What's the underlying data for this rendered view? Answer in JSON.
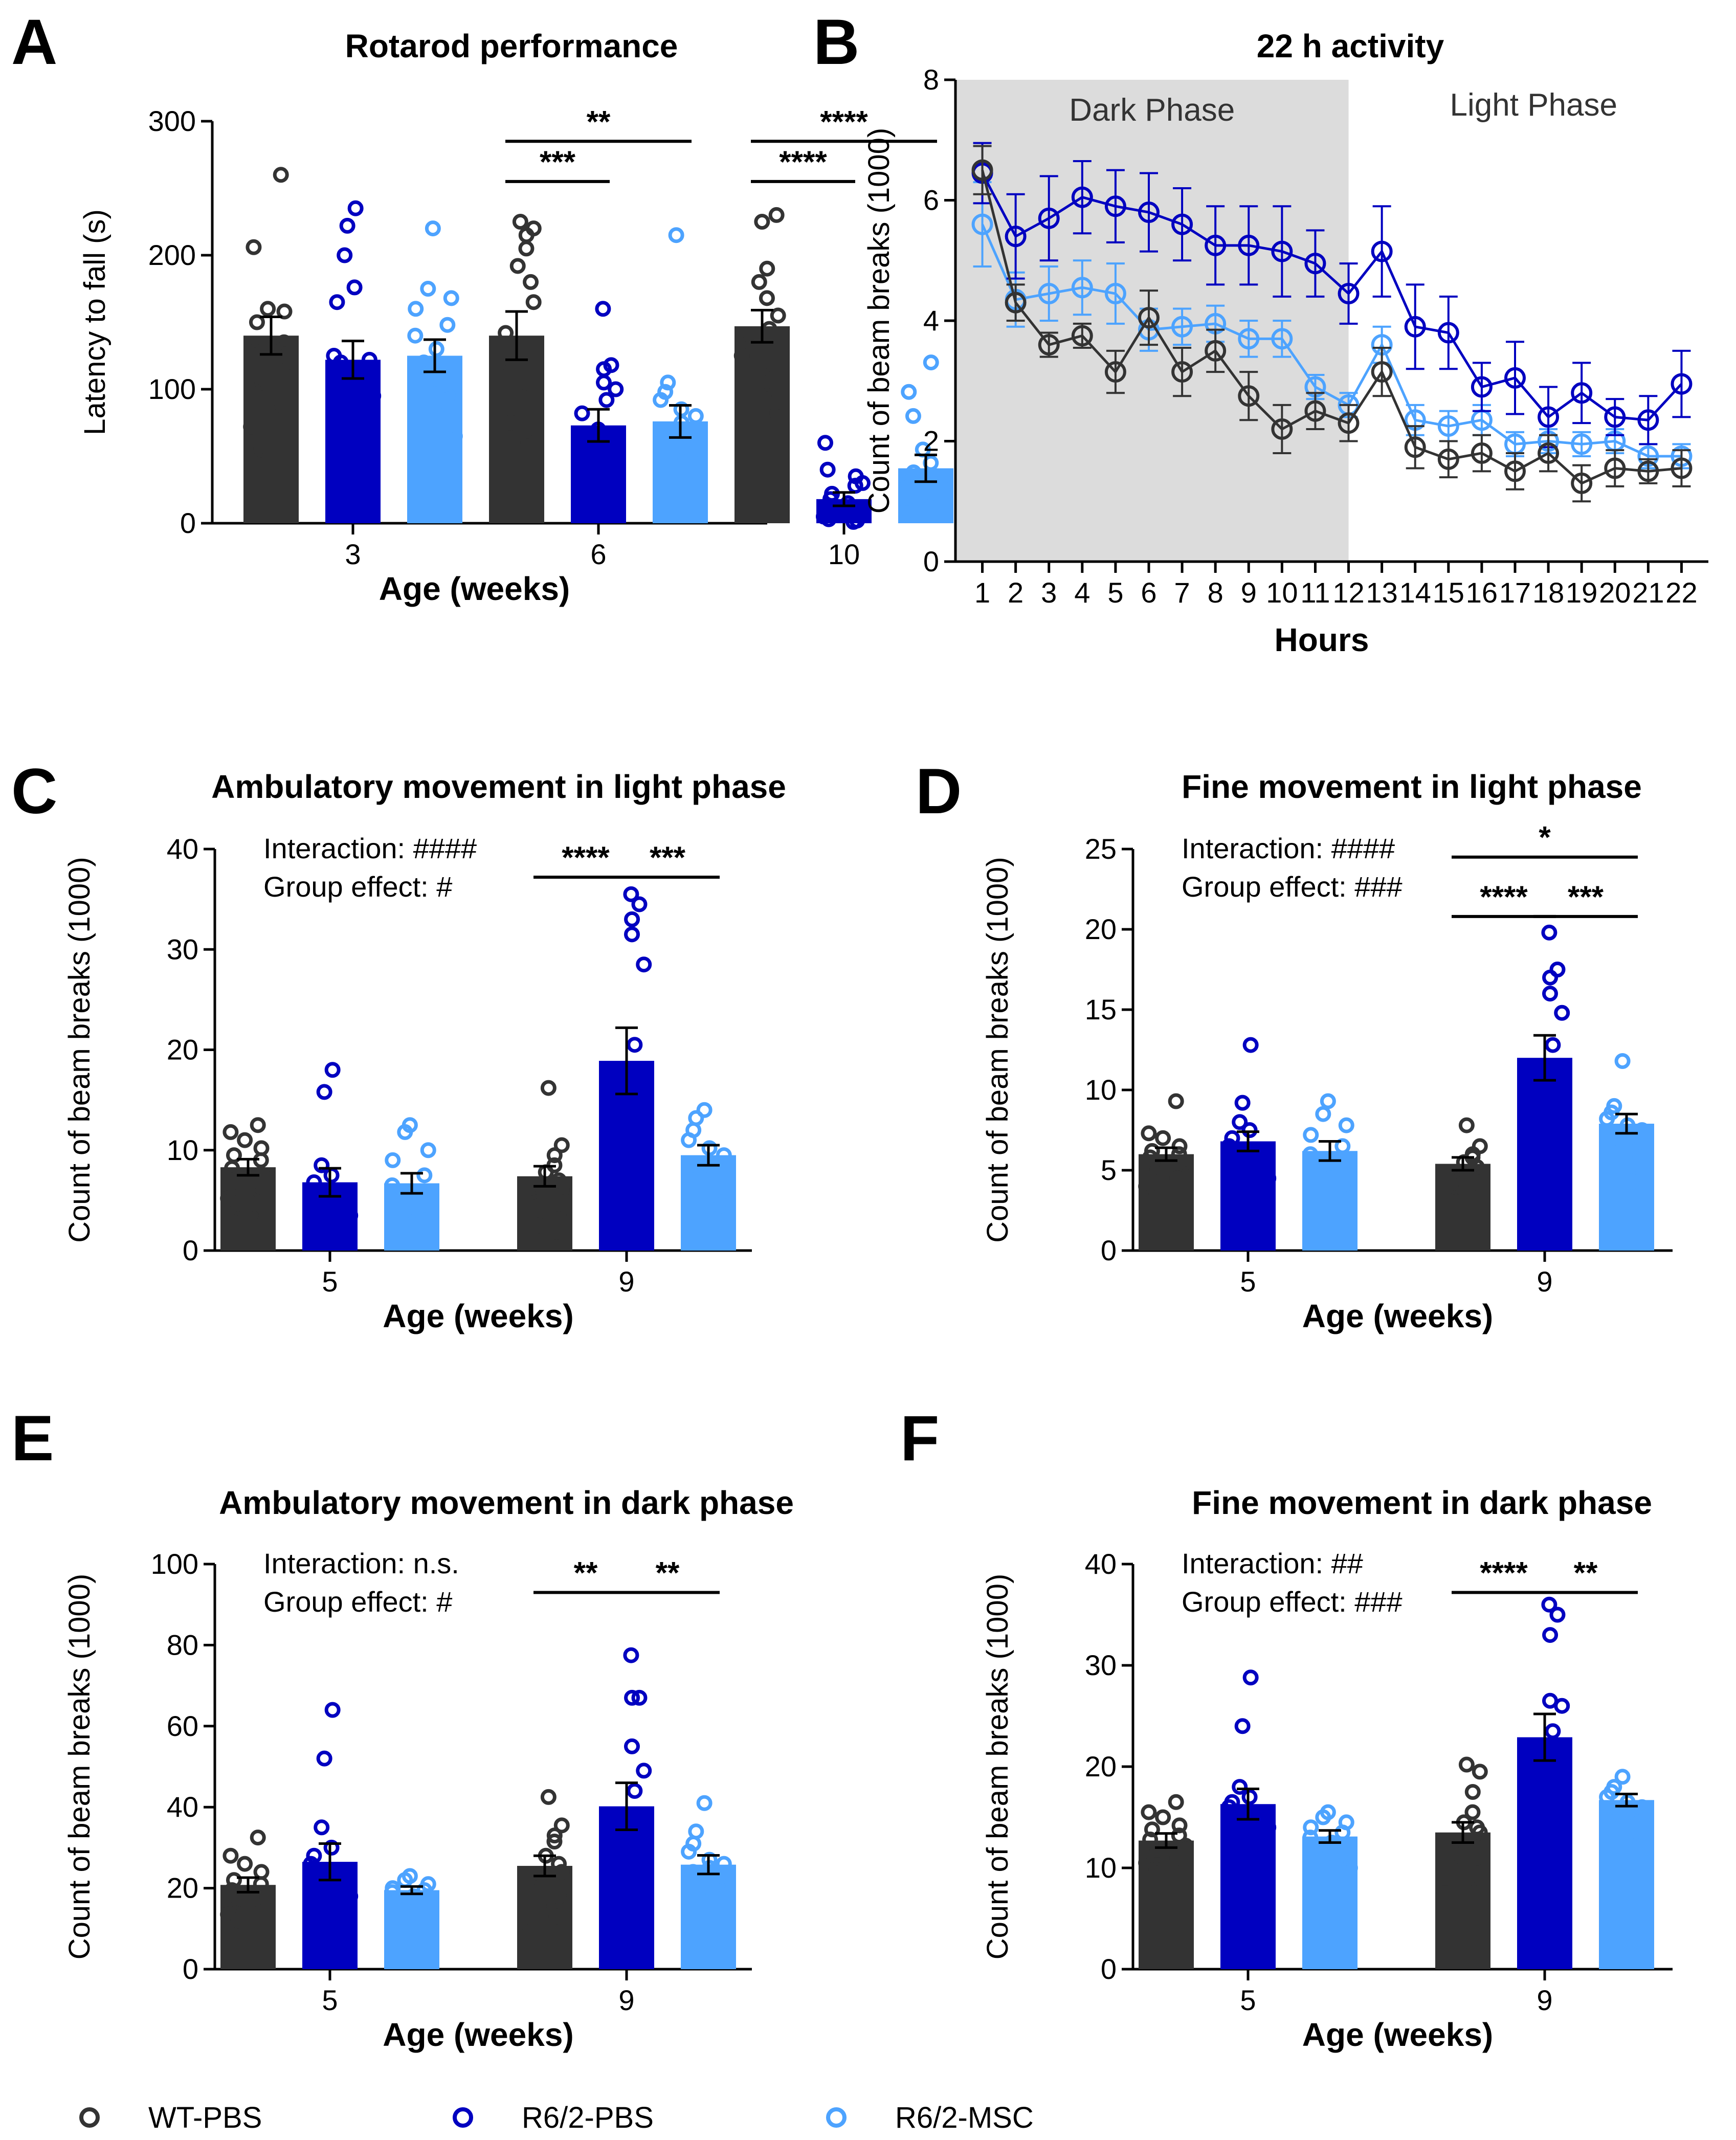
{
  "colors": {
    "WT-PBS": "#333333",
    "R6/2-PBS": "#0000c0",
    "R6/2-MSC": "#4da3ff",
    "shade": "#dcdcdc"
  },
  "legend": [
    "WT-PBS",
    "R6/2-PBS",
    "R6/2-MSC"
  ],
  "chart_data": [
    {
      "panel": "A",
      "type": "bar",
      "title": "Rotarod performance",
      "xlabel": "Age (weeks)",
      "ylabel": "Latency to fall (s)",
      "ylim": [
        0,
        300
      ],
      "yticks": [
        0,
        100,
        200,
        300
      ],
      "categories": [
        "3",
        "6",
        "10"
      ],
      "series": [
        {
          "name": "WT-PBS",
          "values": [
            140,
            140,
            147
          ],
          "sem": [
            14,
            18,
            12
          ],
          "points": [
            [
              260,
              206,
              160,
              158,
              150,
              135,
              128,
              118,
              105,
              88,
              72,
              55
            ],
            [
              225,
              220,
              215,
              205,
              192,
              180,
              165,
              142,
              115,
              100,
              75,
              60
            ],
            [
              230,
              225,
              190,
              180,
              168,
              155,
              145,
              140,
              125,
              110,
              95,
              82
            ]
          ]
        },
        {
          "name": "R6/2-PBS",
          "values": [
            122,
            73,
            18
          ],
          "sem": [
            14,
            12,
            5
          ],
          "points": [
            [
              235,
              222,
              200,
              176,
              165,
              125,
              122,
              120,
              110,
              95,
              88,
              70,
              55,
              38
            ],
            [
              160,
              118,
              115,
              105,
              100,
              92,
              82,
              70,
              60,
              45,
              40,
              30,
              20,
              10
            ],
            [
              60,
              40,
              35,
              30,
              28,
              22,
              18,
              15,
              10,
              8,
              5,
              3,
              2,
              1
            ]
          ]
        },
        {
          "name": "R6/2-MSC",
          "values": [
            125,
            76,
            41
          ],
          "sem": [
            12,
            12,
            10
          ],
          "points": [
            [
              220,
              175,
              168,
              160,
              148,
              140,
              130,
              120,
              108,
              95,
              80,
              65
            ],
            [
              215,
              105,
              98,
              92,
              85,
              80,
              75,
              70,
              62,
              55,
              48
            ],
            [
              120,
              98,
              80,
              55,
              45,
              38,
              30,
              25,
              20,
              15,
              10,
              6
            ]
          ]
        }
      ],
      "significance": [
        {
          "label": "**",
          "group": "6",
          "from": "WT-PBS",
          "to": "R6/2-MSC"
        },
        {
          "label": "***",
          "group": "6",
          "from": "WT-PBS",
          "to": "R6/2-PBS"
        },
        {
          "label": "****",
          "group": "10",
          "from": "WT-PBS",
          "to": "R6/2-MSC"
        },
        {
          "label": "****",
          "group": "10",
          "from": "WT-PBS",
          "to": "R6/2-PBS"
        }
      ]
    },
    {
      "panel": "B",
      "type": "line",
      "title": "22 h activity",
      "xlabel": "Hours",
      "ylabel": "Count of beam breaks (1000)",
      "ylim": [
        0,
        8
      ],
      "yticks": [
        0,
        2,
        4,
        6,
        8
      ],
      "x": [
        1,
        2,
        3,
        4,
        5,
        6,
        7,
        8,
        9,
        10,
        11,
        12,
        13,
        14,
        15,
        16,
        17,
        18,
        19,
        20,
        21,
        22
      ],
      "shaded_region": {
        "from": 0.5,
        "to": 12.5,
        "label": "Dark Phase"
      },
      "unshaded_label": "Light Phase",
      "series": [
        {
          "name": "WT-PBS",
          "values": [
            6.5,
            4.3,
            3.6,
            3.75,
            3.15,
            4.05,
            3.15,
            3.5,
            2.75,
            2.2,
            2.5,
            2.3,
            3.15,
            1.9,
            1.7,
            1.8,
            1.5,
            1.8,
            1.3,
            1.55,
            1.5,
            1.55
          ],
          "sem": [
            0.4,
            0.3,
            0.2,
            0.2,
            0.35,
            0.45,
            0.4,
            0.35,
            0.4,
            0.4,
            0.3,
            0.3,
            0.4,
            0.35,
            0.3,
            0.3,
            0.3,
            0.3,
            0.3,
            0.3,
            0.2,
            0.3
          ]
        },
        {
          "name": "R6/2-PBS",
          "values": [
            6.45,
            5.4,
            5.7,
            6.05,
            5.9,
            5.8,
            5.6,
            5.25,
            5.25,
            5.15,
            4.95,
            4.45,
            5.15,
            3.9,
            3.8,
            2.9,
            3.05,
            2.4,
            2.8,
            2.4,
            2.35,
            2.95
          ],
          "sem": [
            0.5,
            0.7,
            0.7,
            0.6,
            0.6,
            0.65,
            0.6,
            0.65,
            0.65,
            0.75,
            0.55,
            0.5,
            0.75,
            0.7,
            0.6,
            0.4,
            0.6,
            0.5,
            0.5,
            0.3,
            0.4,
            0.55
          ]
        },
        {
          "name": "R6/2-MSC",
          "values": [
            5.6,
            4.35,
            4.45,
            4.55,
            4.45,
            3.85,
            3.9,
            3.95,
            3.7,
            3.7,
            2.9,
            2.6,
            3.6,
            2.35,
            2.25,
            2.35,
            1.95,
            2.0,
            1.95,
            2.0,
            1.75,
            1.75
          ],
          "sem": [
            0.7,
            0.45,
            0.45,
            0.45,
            0.5,
            0.35,
            0.3,
            0.3,
            0.3,
            0.3,
            0.2,
            0.2,
            0.3,
            0.25,
            0.25,
            0.25,
            0.2,
            0.2,
            0.2,
            0.2,
            0.2,
            0.2
          ]
        }
      ]
    },
    {
      "panel": "C",
      "type": "bar",
      "title": "Ambulatory movement in light phase",
      "xlabel": "Age (weeks)",
      "ylabel": "Count of beam breaks (1000)",
      "ylim": [
        0,
        40
      ],
      "yticks": [
        0,
        10,
        20,
        30,
        40
      ],
      "categories": [
        "5",
        "9"
      ],
      "stats": [
        "Interaction: ####",
        "Group effect: #"
      ],
      "series": [
        {
          "name": "WT-PBS",
          "values": [
            8.3,
            7.4
          ],
          "sem": [
            0.8,
            1.0
          ],
          "points": [
            [
              12.5,
              11.8,
              11.0,
              10.2,
              9.5,
              9.0,
              8.2,
              7.5,
              6.8,
              6.0,
              5.2,
              4.3,
              3.5
            ],
            [
              16.2,
              10.5,
              9.5,
              8.5,
              7.8,
              7.0,
              6.0,
              5.5,
              4.8,
              3.5,
              2.5,
              1.5
            ]
          ]
        },
        {
          "name": "R6/2-PBS",
          "values": [
            6.8,
            18.9
          ],
          "sem": [
            1.4,
            3.3
          ],
          "points": [
            [
              18.0,
              15.8,
              8.5,
              7.5,
              6.8,
              6.0,
              5.5,
              4.5,
              4.0,
              3.5,
              3.2,
              2.0
            ],
            [
              35.5,
              34.5,
              33.0,
              31.5,
              28.5,
              20.5,
              16.0,
              13.0,
              10.0,
              8.0,
              5.5,
              3.5,
              1.5
            ]
          ]
        },
        {
          "name": "R6/2-MSC",
          "values": [
            6.7,
            9.5
          ],
          "sem": [
            1.0,
            1.0
          ],
          "points": [
            [
              12.5,
              11.8,
              10.0,
              9.0,
              7.5,
              6.5,
              5.8,
              5.0,
              4.0,
              3.0
            ],
            [
              14.0,
              13.2,
              12.0,
              11.0,
              10.2,
              9.5,
              8.5,
              7.0,
              6.0,
              4.5,
              3.5
            ]
          ]
        }
      ],
      "significance": [
        {
          "label": "****",
          "group": "9",
          "from": "WT-PBS",
          "to": "R6/2-PBS"
        },
        {
          "label": "***",
          "group": "9",
          "from": "R6/2-PBS",
          "to": "R6/2-MSC"
        }
      ]
    },
    {
      "panel": "D",
      "type": "bar",
      "title": "Fine movement in light phase",
      "xlabel": "Age (weeks)",
      "ylabel": "Count of beam breaks (1000)",
      "ylim": [
        0,
        25
      ],
      "yticks": [
        0,
        5,
        10,
        15,
        20,
        25
      ],
      "categories": [
        "5",
        "9"
      ],
      "stats": [
        "Interaction: ####",
        "Group effect: ###"
      ],
      "series": [
        {
          "name": "WT-PBS",
          "values": [
            6.0,
            5.4
          ],
          "sem": [
            0.4,
            0.4
          ],
          "points": [
            [
              9.3,
              7.3,
              7.0,
              6.5,
              6.2,
              6.0,
              5.8,
              5.5,
              5.0,
              4.5,
              4.0,
              3.5
            ],
            [
              7.8,
              6.5,
              6.0,
              5.8,
              5.5,
              5.2,
              4.8,
              4.5,
              4.0,
              3.5,
              3.0
            ]
          ]
        },
        {
          "name": "R6/2-PBS",
          "values": [
            6.8,
            12.0
          ],
          "sem": [
            0.6,
            1.4
          ],
          "points": [
            [
              12.8,
              9.2,
              8.0,
              7.5,
              7.0,
              6.5,
              6.0,
              5.5,
              5.0,
              4.5,
              4.0,
              3.0
            ],
            [
              19.8,
              17.5,
              17.0,
              16.0,
              14.8,
              12.8,
              11.0,
              10.0,
              9.0,
              7.5,
              6.5,
              5.0
            ]
          ]
        },
        {
          "name": "R6/2-MSC",
          "values": [
            6.2,
            7.9
          ],
          "sem": [
            0.6,
            0.6
          ],
          "points": [
            [
              9.3,
              8.5,
              7.8,
              7.2,
              6.5,
              6.0,
              5.5,
              5.0,
              4.5,
              4.0,
              3.5
            ],
            [
              11.8,
              9.0,
              8.6,
              8.2,
              7.8,
              7.5,
              7.0,
              6.5,
              5.8,
              5.0,
              4.3
            ]
          ]
        }
      ],
      "significance": [
        {
          "label": "*",
          "group": "9",
          "from": "WT-PBS",
          "to": "R6/2-MSC"
        },
        {
          "label": "****",
          "group": "9",
          "from": "WT-PBS",
          "to": "R6/2-PBS"
        },
        {
          "label": "***",
          "group": "9",
          "from": "R6/2-PBS",
          "to": "R6/2-MSC"
        }
      ]
    },
    {
      "panel": "E",
      "type": "bar",
      "title": "Ambulatory movement in dark phase",
      "xlabel": "Age (weeks)",
      "ylabel": "Count of beam breaks (1000)",
      "ylim": [
        0,
        100
      ],
      "yticks": [
        0,
        20,
        40,
        60,
        80,
        100
      ],
      "categories": [
        "5",
        "9"
      ],
      "stats": [
        "Interaction: n.s.",
        "Group effect: #"
      ],
      "series": [
        {
          "name": "WT-PBS",
          "values": [
            20.8,
            25.5
          ],
          "sem": [
            1.8,
            2.5
          ],
          "points": [
            [
              32.5,
              28.0,
              26.0,
              24.0,
              22.0,
              21.0,
              19.5,
              18.0,
              16.5,
              15.0,
              13.5,
              12.0
            ],
            [
              42.5,
              35.5,
              33.0,
              31.5,
              28.0,
              26.0,
              24.0,
              22.0,
              20.0,
              18.0,
              15.5,
              13.0,
              10.0
            ]
          ]
        },
        {
          "name": "R6/2-PBS",
          "values": [
            26.5,
            40.2
          ],
          "sem": [
            4.5,
            5.8
          ],
          "points": [
            [
              64.0,
              52.0,
              35.0,
              30.0,
              28.0,
              26.0,
              24.0,
              22.0,
              20.0,
              18.0,
              16.0,
              14.0
            ],
            [
              77.5,
              67.0,
              67.0,
              55.0,
              49.0,
              44.0,
              38.0,
              30.5,
              25.0,
              20.0,
              15.0
            ]
          ]
        },
        {
          "name": "R6/2-MSC",
          "values": [
            19.5,
            25.8
          ],
          "sem": [
            0.9,
            2.3
          ],
          "points": [
            [
              23.0,
              22.0,
              21.0,
              20.0,
              19.5,
              19.0,
              18.0,
              17.5,
              17.0
            ],
            [
              41.0,
              34.0,
              31.0,
              29.0,
              27.0,
              26.0,
              25.0,
              24.0,
              22.0,
              20.5,
              19.0
            ]
          ]
        }
      ],
      "significance": [
        {
          "label": "**",
          "group": "9",
          "from": "WT-PBS",
          "to": "R6/2-PBS"
        },
        {
          "label": "**",
          "group": "9",
          "from": "R6/2-PBS",
          "to": "R6/2-MSC"
        }
      ]
    },
    {
      "panel": "F",
      "type": "bar",
      "title": "Fine movement in dark phase",
      "xlabel": "Age (weeks)",
      "ylabel": "Count of beam breaks (1000)",
      "ylim": [
        0,
        40
      ],
      "yticks": [
        0,
        10,
        20,
        30,
        40
      ],
      "categories": [
        "5",
        "9"
      ],
      "stats": [
        "Interaction: ##",
        "Group effect: ###"
      ],
      "series": [
        {
          "name": "WT-PBS",
          "values": [
            12.7,
            13.5
          ],
          "sem": [
            0.7,
            1.0
          ],
          "points": [
            [
              16.5,
              15.5,
              15.0,
              14.2,
              13.8,
              13.2,
              12.8,
              12.2,
              11.8,
              11.0,
              10.5,
              9.8
            ],
            [
              20.2,
              19.5,
              17.5,
              15.5,
              14.5,
              14.0,
              13.5,
              12.5,
              12.0,
              11.0,
              10.0,
              9.0,
              7.5
            ]
          ]
        },
        {
          "name": "R6/2-PBS",
          "values": [
            16.3,
            22.9
          ],
          "sem": [
            1.5,
            2.3
          ],
          "points": [
            [
              28.8,
              24.0,
              18.0,
              17.0,
              16.5,
              16.0,
              15.5,
              15.0,
              14.5,
              14.0,
              13.5,
              13.0
            ],
            [
              36.0,
              35.0,
              33.0,
              26.5,
              26.0,
              23.5,
              22.0,
              20.5,
              18.5,
              16.0,
              14.0,
              11.5
            ]
          ]
        },
        {
          "name": "R6/2-MSC",
          "values": [
            13.1,
            16.7
          ],
          "sem": [
            0.6,
            0.6
          ],
          "points": [
            [
              15.5,
              15.0,
              14.5,
              14.0,
              13.5,
              13.0,
              12.5,
              12.0,
              11.5,
              11.0,
              10.5,
              10.0
            ],
            [
              19.0,
              18.0,
              17.5,
              17.0,
              16.5,
              16.0,
              15.5,
              14.5,
              12.5
            ]
          ]
        }
      ],
      "significance": [
        {
          "label": "****",
          "group": "9",
          "from": "WT-PBS",
          "to": "R6/2-PBS"
        },
        {
          "label": "**",
          "group": "9",
          "from": "R6/2-PBS",
          "to": "R6/2-MSC"
        }
      ]
    }
  ]
}
